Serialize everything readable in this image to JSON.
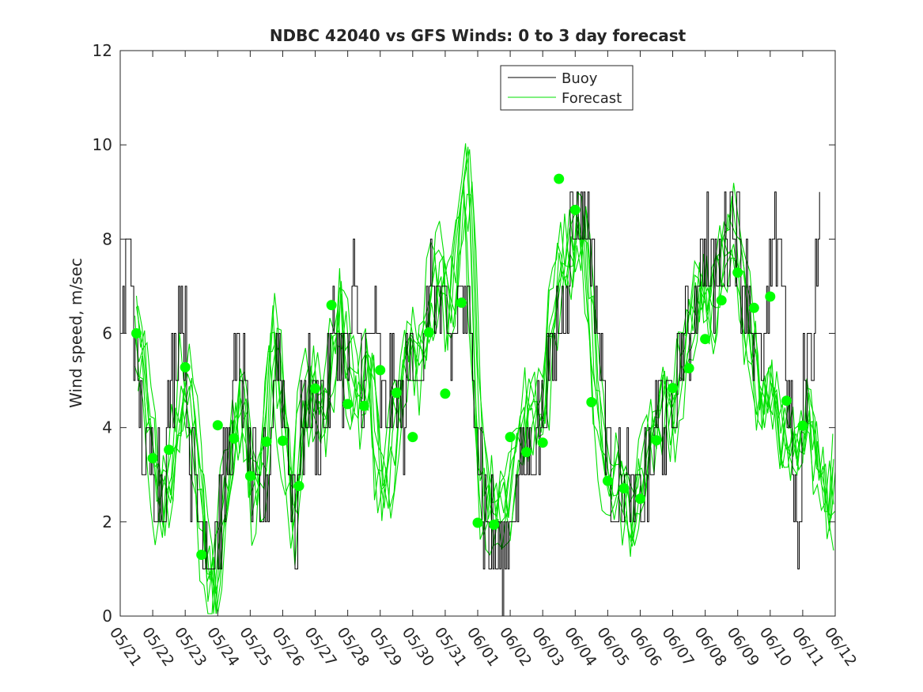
{
  "chart_data": {
    "type": "line",
    "title": "NDBC 42040 vs GFS Winds: 0 to 3 day forecast",
    "ylabel": "Wind speed, m/sec",
    "xlabel": "",
    "xlim": [
      0,
      22
    ],
    "ylim": [
      0,
      12
    ],
    "x_tick_labels": [
      "05/21",
      "05/22",
      "05/23",
      "05/24",
      "05/25",
      "05/26",
      "05/27",
      "05/28",
      "05/29",
      "05/30",
      "05/31",
      "06/01",
      "06/02",
      "06/03",
      "06/04",
      "06/05",
      "06/06",
      "06/07",
      "06/08",
      "06/09",
      "06/10",
      "06/11",
      "06/12"
    ],
    "y_ticks": [
      0,
      2,
      4,
      6,
      8,
      10,
      12
    ],
    "grid": false,
    "legend": {
      "placement": "top-center",
      "entries": [
        "Buoy",
        "Forecast"
      ]
    },
    "colors": {
      "buoy": "#000000",
      "forecast": "#00e000",
      "markers": "#00ff00"
    },
    "buoy_keypoints": [
      [
        0,
        6
      ],
      [
        0.3,
        8
      ],
      [
        0.5,
        5
      ],
      [
        0.8,
        3
      ],
      [
        1.0,
        3.5
      ],
      [
        1.3,
        3
      ],
      [
        1.6,
        5
      ],
      [
        1.9,
        7
      ],
      [
        2.2,
        3
      ],
      [
        2.6,
        2
      ],
      [
        2.8,
        1
      ],
      [
        3.0,
        2
      ],
      [
        3.3,
        3.5
      ],
      [
        3.6,
        5.5
      ],
      [
        3.8,
        5
      ],
      [
        4.0,
        3
      ],
      [
        4.3,
        2
      ],
      [
        4.6,
        3.5
      ],
      [
        4.8,
        6
      ],
      [
        5.1,
        4
      ],
      [
        5.4,
        2
      ],
      [
        5.7,
        5
      ],
      [
        6.0,
        4
      ],
      [
        6.3,
        4.5
      ],
      [
        6.6,
        6
      ],
      [
        6.9,
        5
      ],
      [
        7.2,
        7
      ],
      [
        7.5,
        5
      ],
      [
        7.8,
        6
      ],
      [
        8.1,
        4
      ],
      [
        8.4,
        5
      ],
      [
        8.7,
        4
      ],
      [
        9.0,
        6
      ],
      [
        9.3,
        5
      ],
      [
        9.6,
        7.5
      ],
      [
        9.9,
        6
      ],
      [
        10.2,
        5.5
      ],
      [
        10.5,
        7
      ],
      [
        10.9,
        5
      ],
      [
        11.0,
        4
      ],
      [
        11.2,
        2
      ],
      [
        11.5,
        1.5
      ],
      [
        11.7,
        1
      ],
      [
        12.0,
        2
      ],
      [
        12.3,
        3
      ],
      [
        12.6,
        3.5
      ],
      [
        12.9,
        4
      ],
      [
        13.2,
        5
      ],
      [
        13.5,
        6.5
      ],
      [
        13.7,
        7
      ],
      [
        13.9,
        8.5
      ],
      [
        14.2,
        8.5
      ],
      [
        14.5,
        8
      ],
      [
        14.7,
        6
      ],
      [
        15.0,
        3.5
      ],
      [
        15.3,
        2.5
      ],
      [
        15.6,
        3
      ],
      [
        15.8,
        2
      ],
      [
        16.0,
        2.5
      ],
      [
        16.3,
        3
      ],
      [
        16.6,
        4.5
      ],
      [
        16.9,
        4
      ],
      [
        17.2,
        5.5
      ],
      [
        17.5,
        6
      ],
      [
        17.8,
        7.5
      ],
      [
        18.0,
        8
      ],
      [
        18.3,
        7
      ],
      [
        18.6,
        8
      ],
      [
        18.9,
        8.5
      ],
      [
        19.2,
        7
      ],
      [
        19.5,
        6
      ],
      [
        19.8,
        5
      ],
      [
        20.0,
        7
      ],
      [
        20.3,
        8.5
      ],
      [
        20.6,
        4
      ],
      [
        20.9,
        1
      ],
      [
        21.0,
        5
      ],
      [
        21.3,
        6
      ],
      [
        21.5,
        8.5
      ]
    ],
    "forecast_keypoints": [
      [
        0.5,
        6
      ],
      [
        0.9,
        4.3
      ],
      [
        1.2,
        2.2
      ],
      [
        1.6,
        3
      ],
      [
        2.0,
        5.3
      ],
      [
        2.3,
        4
      ],
      [
        2.6,
        1.5
      ],
      [
        2.9,
        0.5
      ],
      [
        3.2,
        2.5
      ],
      [
        3.5,
        4
      ],
      [
        3.8,
        4.5
      ],
      [
        4.1,
        2.5
      ],
      [
        4.4,
        3
      ],
      [
        4.7,
        6.5
      ],
      [
        5.0,
        4
      ],
      [
        5.3,
        2
      ],
      [
        5.6,
        4
      ],
      [
        5.9,
        5
      ],
      [
        6.2,
        4
      ],
      [
        6.5,
        5.5
      ],
      [
        6.8,
        6.5
      ],
      [
        7.1,
        5
      ],
      [
        7.4,
        4.5
      ],
      [
        7.7,
        5.5
      ],
      [
        8.0,
        2.5
      ],
      [
        8.3,
        3
      ],
      [
        8.6,
        5
      ],
      [
        8.9,
        6
      ],
      [
        9.2,
        5
      ],
      [
        9.5,
        6.5
      ],
      [
        9.8,
        7.5
      ],
      [
        10.1,
        6
      ],
      [
        10.4,
        8
      ],
      [
        10.7,
        9.5
      ],
      [
        11.0,
        4
      ],
      [
        11.3,
        2
      ],
      [
        11.6,
        2.5
      ],
      [
        11.9,
        2
      ],
      [
        12.2,
        3.5
      ],
      [
        12.5,
        4.5
      ],
      [
        12.8,
        4
      ],
      [
        13.1,
        5
      ],
      [
        13.4,
        7
      ],
      [
        13.7,
        8
      ],
      [
        14.0,
        7.5
      ],
      [
        14.3,
        8.2
      ],
      [
        14.6,
        5.5
      ],
      [
        14.9,
        3
      ],
      [
        15.2,
        3
      ],
      [
        15.5,
        2.5
      ],
      [
        15.8,
        2
      ],
      [
        16.1,
        3
      ],
      [
        16.4,
        4
      ],
      [
        16.7,
        4.5
      ],
      [
        17.0,
        4
      ],
      [
        17.3,
        5.5
      ],
      [
        17.6,
        6.5
      ],
      [
        17.9,
        7
      ],
      [
        18.2,
        6.5
      ],
      [
        18.5,
        7.5
      ],
      [
        18.8,
        8.2
      ],
      [
        19.1,
        7
      ],
      [
        19.4,
        6
      ],
      [
        19.7,
        4.5
      ],
      [
        20.0,
        5
      ],
      [
        20.3,
        4
      ],
      [
        20.6,
        3.5
      ],
      [
        20.9,
        3.5
      ],
      [
        21.2,
        4.5
      ],
      [
        21.5,
        3
      ],
      [
        21.8,
        2
      ],
      [
        22.0,
        3
      ]
    ],
    "forecast_markers": [
      [
        0.5,
        6.0
      ],
      [
        1.0,
        3.35
      ],
      [
        1.5,
        3.53
      ],
      [
        2.0,
        5.28
      ],
      [
        2.5,
        1.3
      ],
      [
        3.0,
        4.05
      ],
      [
        3.5,
        3.77
      ],
      [
        4.0,
        2.97
      ],
      [
        4.5,
        3.7
      ],
      [
        5.0,
        3.72
      ],
      [
        5.5,
        2.76
      ],
      [
        6.0,
        4.83
      ],
      [
        6.5,
        6.6
      ],
      [
        7.0,
        4.5
      ],
      [
        7.5,
        4.46
      ],
      [
        8.0,
        5.22
      ],
      [
        8.5,
        4.74
      ],
      [
        9.0,
        3.8
      ],
      [
        9.5,
        6.02
      ],
      [
        10.0,
        4.72
      ],
      [
        10.5,
        6.65
      ],
      [
        11.0,
        1.98
      ],
      [
        11.5,
        1.94
      ],
      [
        12.0,
        3.8
      ],
      [
        12.5,
        3.48
      ],
      [
        13.0,
        3.68
      ],
      [
        13.5,
        9.28
      ],
      [
        14.0,
        8.62
      ],
      [
        14.5,
        4.54
      ],
      [
        15.0,
        2.87
      ],
      [
        15.5,
        2.71
      ],
      [
        16.0,
        2.49
      ],
      [
        16.5,
        3.73
      ],
      [
        17.0,
        4.84
      ],
      [
        17.5,
        5.26
      ],
      [
        18.0,
        5.88
      ],
      [
        18.5,
        6.7
      ],
      [
        19.0,
        7.29
      ],
      [
        19.5,
        6.54
      ],
      [
        20.0,
        6.78
      ],
      [
        20.5,
        4.57
      ],
      [
        21.0,
        4.04
      ]
    ]
  }
}
